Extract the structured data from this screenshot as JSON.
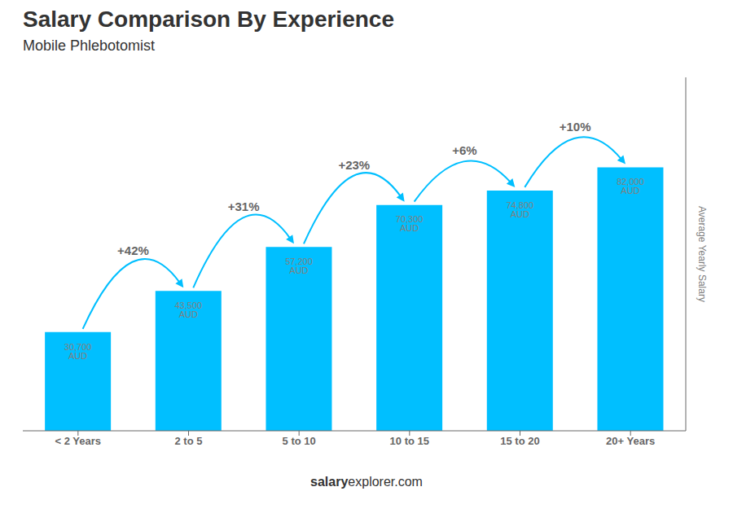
{
  "chart_data": {
    "type": "bar",
    "title": "Salary Comparison By Experience",
    "subtitle": "Mobile Phlebotomist",
    "categories": [
      "< 2 Years",
      "2 to 5",
      "5 to 10",
      "10 to 15",
      "15 to 20",
      "20+ Years"
    ],
    "values": [
      30700,
      43500,
      57200,
      70300,
      74800,
      82000
    ],
    "value_labels": [
      "30,700 AUD",
      "43,500 AUD",
      "57,200 AUD",
      "70,300 AUD",
      "74,800 AUD",
      "82,000 AUD"
    ],
    "data_labels": true,
    "annotations": [
      "+42%",
      "+31%",
      "+23%",
      "+6%",
      "+10%"
    ],
    "y_label": "Average Yearly Salary",
    "footer": [
      "salary",
      "explorer.com"
    ],
    "color": "#00BFFF",
    "ylim": [
      0,
      110000
    ],
    "tick_labels": "x",
    "grid": false
  }
}
